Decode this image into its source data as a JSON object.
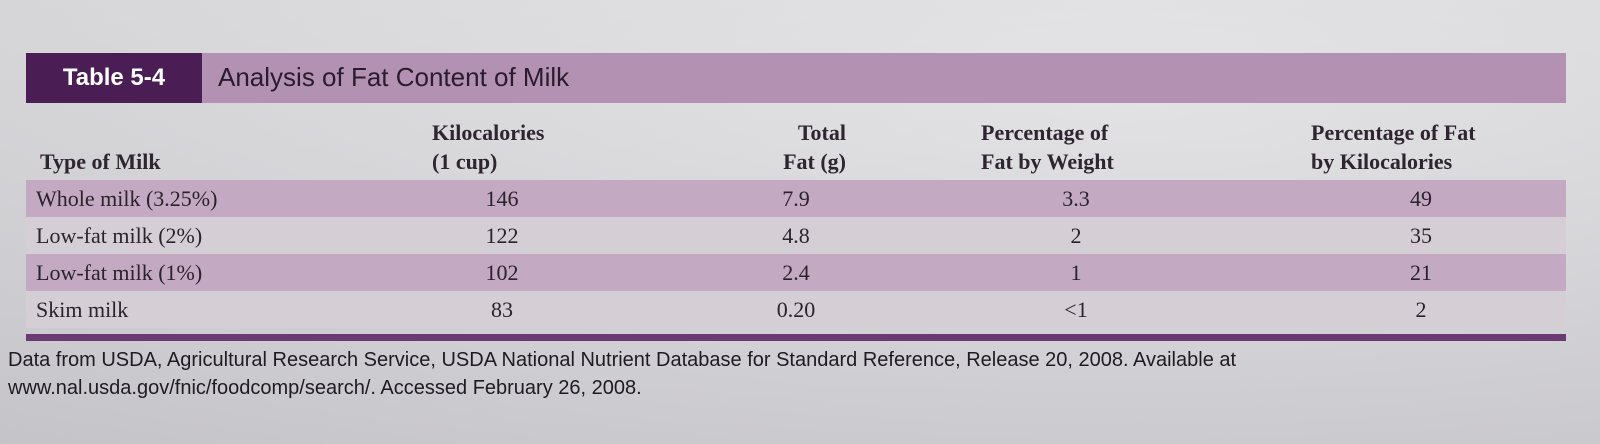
{
  "table": {
    "label": "Table 5-4",
    "title": "Analysis of Fat Content of Milk",
    "headers": {
      "type_of_milk": "Type of Milk",
      "kilocalories_line1": "Kilocalories",
      "kilocalories_line2": "(1 cup)",
      "total_fat_line1": "Total",
      "total_fat_line2": "Fat (g)",
      "pct_weight_line1": "Percentage of",
      "pct_weight_line2": "Fat by Weight",
      "pct_kcal_line1": "Percentage of Fat",
      "pct_kcal_line2": "by Kilocalories"
    },
    "rows": [
      {
        "type": "Whole milk (3.25%)",
        "kcal": "146",
        "fat": "7.9",
        "pct_weight": "3.3",
        "pct_kcal": "49"
      },
      {
        "type": "Low-fat milk (2%)",
        "kcal": "122",
        "fat": "4.8",
        "pct_weight": "2",
        "pct_kcal": "35"
      },
      {
        "type": "Low-fat milk (1%)",
        "kcal": "102",
        "fat": "2.4",
        "pct_weight": "1",
        "pct_kcal": "21"
      },
      {
        "type": "Skim milk",
        "kcal": "83",
        "fat": "0.20",
        "pct_weight": "<1",
        "pct_kcal": "2"
      }
    ],
    "source_line1": "Data from USDA, Agricultural Research Service, USDA National Nutrient Database for Standard Reference, Release 20, 2008. Available at",
    "source_line2": "www.nal.usda.gov/fnic/foodcomp/search/. Accessed February 26, 2008."
  },
  "colors": {
    "label_background": "#4b1d55",
    "title_bar": "#b391b2",
    "shaded_row": "#c3a9c1",
    "rule": "#6a3a72"
  }
}
